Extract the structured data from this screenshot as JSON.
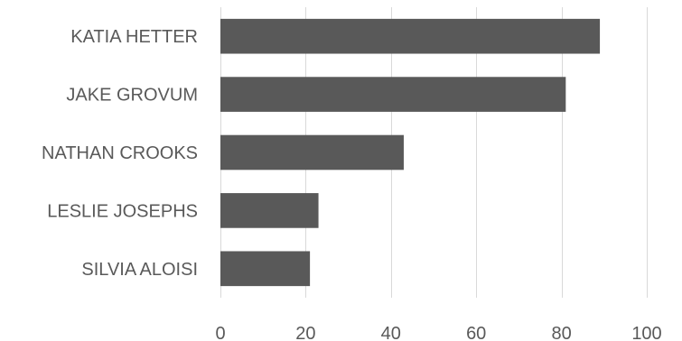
{
  "chart_data": {
    "type": "bar",
    "orientation": "horizontal",
    "categories": [
      "KATIA HETTER",
      "JAKE GROVUM",
      "NATHAN CROOKS",
      "LESLIE JOSEPHS",
      "SILVIA ALOISI"
    ],
    "values": [
      89,
      81,
      43,
      23,
      21
    ],
    "xlim": [
      0,
      100
    ],
    "xticks": [
      0,
      20,
      40,
      60,
      80,
      100
    ],
    "grid": "vertical",
    "legend": "none",
    "bar_color": "#595959",
    "grid_color": "#d9d9d9",
    "label_color": "#595959"
  }
}
